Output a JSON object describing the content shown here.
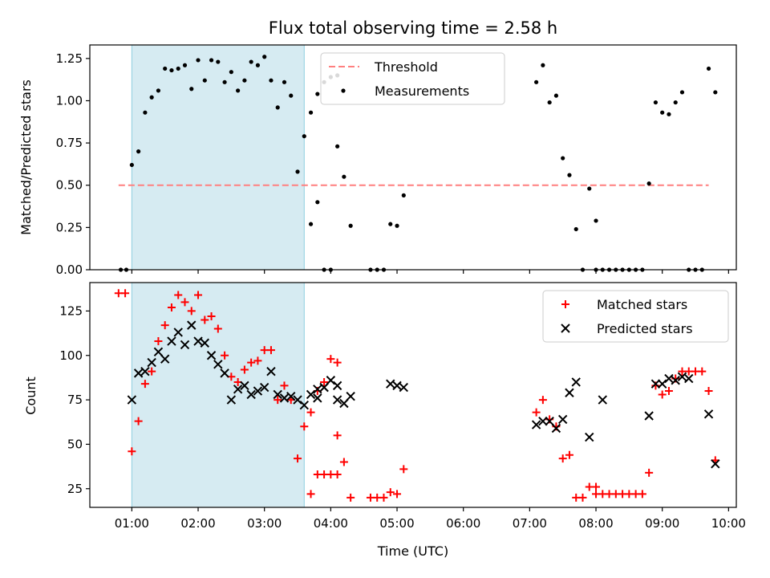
{
  "colors": {
    "threshold": "#ff7f7f",
    "measurement": "#000000",
    "matched": "#ff0000",
    "predicted": "#000000",
    "highlight_fill": "#add8e6",
    "highlight_edge": "#8fcfe0"
  },
  "chart_data": [
    {
      "type": "scatter",
      "title": "Flux total observing time = 2.58 h",
      "xlabel": "",
      "ylabel": "Matched/Predicted stars",
      "x_unit": "time of day (UTC)",
      "xlim": [
        "00:22",
        "10:07"
      ],
      "ylim": [
        0,
        1.33
      ],
      "yticks": [
        "0.00",
        "0.25",
        "0.50",
        "0.75",
        "1.00",
        "1.25"
      ],
      "grid": false,
      "legend_position": "top-center",
      "highlight_span": [
        "01:00",
        "03:36"
      ],
      "threshold": {
        "name": "Threshold",
        "style": "dashed",
        "value": 0.5,
        "x_range": [
          "00:48",
          "09:42"
        ]
      },
      "series": [
        {
          "name": "Measurements",
          "marker": "dot",
          "points": [
            [
              "00:50",
              0.0
            ],
            [
              "00:55",
              0.0
            ],
            [
              "01:00",
              0.62
            ],
            [
              "01:06",
              0.7
            ],
            [
              "01:12",
              0.93
            ],
            [
              "01:18",
              1.02
            ],
            [
              "01:24",
              1.06
            ],
            [
              "01:30",
              1.19
            ],
            [
              "01:36",
              1.18
            ],
            [
              "01:42",
              1.19
            ],
            [
              "01:48",
              1.21
            ],
            [
              "01:54",
              1.07
            ],
            [
              "02:00",
              1.24
            ],
            [
              "02:06",
              1.12
            ],
            [
              "02:12",
              1.24
            ],
            [
              "02:18",
              1.23
            ],
            [
              "02:24",
              1.11
            ],
            [
              "02:30",
              1.17
            ],
            [
              "02:36",
              1.06
            ],
            [
              "02:42",
              1.12
            ],
            [
              "02:48",
              1.23
            ],
            [
              "02:54",
              1.21
            ],
            [
              "03:00",
              1.26
            ],
            [
              "03:06",
              1.12
            ],
            [
              "03:12",
              0.96
            ],
            [
              "03:18",
              1.11
            ],
            [
              "03:24",
              1.03
            ],
            [
              "03:30",
              0.58
            ],
            [
              "03:36",
              0.79
            ],
            [
              "03:42",
              0.93
            ],
            [
              "03:48",
              1.04
            ],
            [
              "03:54",
              1.11
            ],
            [
              "04:00",
              1.14
            ],
            [
              "04:06",
              1.15
            ],
            [
              "03:42",
              0.27
            ],
            [
              "03:48",
              0.4
            ],
            [
              "03:54",
              0.0
            ],
            [
              "04:00",
              0.0
            ],
            [
              "04:06",
              0.73
            ],
            [
              "04:12",
              0.55
            ],
            [
              "04:18",
              0.26
            ],
            [
              "04:36",
              0.0
            ],
            [
              "04:42",
              0.0
            ],
            [
              "04:48",
              0.0
            ],
            [
              "04:54",
              0.27
            ],
            [
              "05:00",
              0.26
            ],
            [
              "05:06",
              0.44
            ],
            [
              "07:06",
              1.11
            ],
            [
              "07:12",
              1.21
            ],
            [
              "07:18",
              0.99
            ],
            [
              "07:24",
              1.03
            ],
            [
              "07:30",
              0.66
            ],
            [
              "07:36",
              0.56
            ],
            [
              "07:42",
              0.24
            ],
            [
              "07:48",
              0.0
            ],
            [
              "07:54",
              0.48
            ],
            [
              "08:00",
              0.0
            ],
            [
              "08:00",
              0.29
            ],
            [
              "08:06",
              0.0
            ],
            [
              "08:12",
              0.0
            ],
            [
              "08:18",
              0.0
            ],
            [
              "08:24",
              0.0
            ],
            [
              "08:30",
              0.0
            ],
            [
              "08:36",
              0.0
            ],
            [
              "08:42",
              0.0
            ],
            [
              "08:48",
              0.51
            ],
            [
              "08:54",
              0.99
            ],
            [
              "09:00",
              0.93
            ],
            [
              "09:06",
              0.92
            ],
            [
              "09:12",
              0.99
            ],
            [
              "09:18",
              1.05
            ],
            [
              "09:24",
              0.0
            ],
            [
              "09:30",
              0.0
            ],
            [
              "09:36",
              0.0
            ],
            [
              "09:42",
              1.19
            ],
            [
              "09:48",
              1.05
            ]
          ]
        }
      ]
    },
    {
      "type": "scatter",
      "title": "",
      "xlabel": "Time (UTC)",
      "ylabel": "Count",
      "x_unit": "time of day (UTC)",
      "xlim": [
        "00:22",
        "10:07"
      ],
      "ylim": [
        14.5,
        141
      ],
      "xticks": [
        "01:00",
        "02:00",
        "03:00",
        "04:00",
        "05:00",
        "06:00",
        "07:00",
        "08:00",
        "09:00",
        "10:00"
      ],
      "yticks": [
        "25",
        "50",
        "75",
        "100",
        "125"
      ],
      "grid": false,
      "legend_position": "top-right",
      "highlight_span": [
        "01:00",
        "03:36"
      ],
      "series": [
        {
          "name": "Matched stars",
          "marker": "plus",
          "points": [
            [
              "00:48",
              135
            ],
            [
              "00:54",
              135
            ],
            [
              "01:00",
              46
            ],
            [
              "01:06",
              63
            ],
            [
              "01:12",
              84
            ],
            [
              "01:18",
              91
            ],
            [
              "01:24",
              108
            ],
            [
              "01:30",
              117
            ],
            [
              "01:36",
              127
            ],
            [
              "01:42",
              134
            ],
            [
              "01:48",
              130
            ],
            [
              "01:54",
              125
            ],
            [
              "02:00",
              134
            ],
            [
              "02:06",
              120
            ],
            [
              "02:12",
              122
            ],
            [
              "02:18",
              115
            ],
            [
              "02:24",
              100
            ],
            [
              "02:30",
              88
            ],
            [
              "02:36",
              85
            ],
            [
              "02:42",
              92
            ],
            [
              "02:48",
              96
            ],
            [
              "02:54",
              97
            ],
            [
              "03:00",
              103
            ],
            [
              "03:06",
              103
            ],
            [
              "03:12",
              75
            ],
            [
              "03:18",
              83
            ],
            [
              "03:24",
              75
            ],
            [
              "03:30",
              42
            ],
            [
              "03:36",
              60
            ],
            [
              "03:42",
              68
            ],
            [
              "03:48",
              80
            ],
            [
              "03:54",
              85
            ],
            [
              "04:00",
              98
            ],
            [
              "04:06",
              96
            ],
            [
              "03:42",
              22
            ],
            [
              "03:48",
              33
            ],
            [
              "03:54",
              33
            ],
            [
              "04:00",
              33
            ],
            [
              "04:06",
              33
            ],
            [
              "04:06",
              55
            ],
            [
              "04:12",
              40
            ],
            [
              "04:18",
              20
            ],
            [
              "04:36",
              20
            ],
            [
              "04:42",
              20
            ],
            [
              "04:48",
              20
            ],
            [
              "04:54",
              23
            ],
            [
              "05:00",
              22
            ],
            [
              "05:06",
              36
            ],
            [
              "07:06",
              68
            ],
            [
              "07:12",
              75
            ],
            [
              "07:18",
              64
            ],
            [
              "07:24",
              60
            ],
            [
              "07:30",
              42
            ],
            [
              "07:36",
              44
            ],
            [
              "07:42",
              20
            ],
            [
              "07:48",
              20
            ],
            [
              "07:54",
              26
            ],
            [
              "08:00",
              26
            ],
            [
              "08:00",
              22
            ],
            [
              "08:06",
              22
            ],
            [
              "08:12",
              22
            ],
            [
              "08:18",
              22
            ],
            [
              "08:24",
              22
            ],
            [
              "08:30",
              22
            ],
            [
              "08:36",
              22
            ],
            [
              "08:42",
              22
            ],
            [
              "08:48",
              34
            ],
            [
              "08:54",
              83
            ],
            [
              "09:00",
              78
            ],
            [
              "09:06",
              80
            ],
            [
              "09:12",
              87
            ],
            [
              "09:18",
              91
            ],
            [
              "09:24",
              91
            ],
            [
              "09:30",
              91
            ],
            [
              "09:36",
              91
            ],
            [
              "09:42",
              80
            ],
            [
              "09:48",
              41
            ]
          ]
        },
        {
          "name": "Predicted stars",
          "marker": "x",
          "points": [
            [
              "01:00",
              75
            ],
            [
              "01:06",
              90
            ],
            [
              "01:12",
              91
            ],
            [
              "01:18",
              96
            ],
            [
              "01:24",
              102
            ],
            [
              "01:30",
              98
            ],
            [
              "01:36",
              108
            ],
            [
              "01:42",
              113
            ],
            [
              "01:48",
              106
            ],
            [
              "01:54",
              117
            ],
            [
              "02:00",
              108
            ],
            [
              "02:06",
              107
            ],
            [
              "02:12",
              100
            ],
            [
              "02:18",
              95
            ],
            [
              "02:24",
              90
            ],
            [
              "02:30",
              75
            ],
            [
              "02:36",
              81
            ],
            [
              "02:42",
              83
            ],
            [
              "02:48",
              78
            ],
            [
              "02:54",
              80
            ],
            [
              "03:00",
              82
            ],
            [
              "03:06",
              91
            ],
            [
              "03:12",
              78
            ],
            [
              "03:18",
              76
            ],
            [
              "03:24",
              77
            ],
            [
              "03:30",
              75
            ],
            [
              "03:36",
              72
            ],
            [
              "03:42",
              78
            ],
            [
              "03:48",
              76
            ],
            [
              "03:54",
              82
            ],
            [
              "04:00",
              86
            ],
            [
              "04:06",
              83
            ],
            [
              "03:48",
              81
            ],
            [
              "03:54",
              82
            ],
            [
              "04:06",
              75
            ],
            [
              "04:12",
              73
            ],
            [
              "04:18",
              77
            ],
            [
              "04:54",
              84
            ],
            [
              "05:00",
              83
            ],
            [
              "05:06",
              82
            ],
            [
              "07:06",
              61
            ],
            [
              "07:12",
              63
            ],
            [
              "07:18",
              63
            ],
            [
              "07:24",
              59
            ],
            [
              "07:30",
              64
            ],
            [
              "07:36",
              79
            ],
            [
              "07:42",
              85
            ],
            [
              "07:54",
              54
            ],
            [
              "08:06",
              75
            ],
            [
              "08:48",
              66
            ],
            [
              "08:54",
              84
            ],
            [
              "09:00",
              84
            ],
            [
              "09:06",
              87
            ],
            [
              "09:12",
              86
            ],
            [
              "09:18",
              88
            ],
            [
              "09:24",
              87
            ],
            [
              "09:42",
              67
            ],
            [
              "09:48",
              39
            ]
          ]
        }
      ]
    }
  ]
}
